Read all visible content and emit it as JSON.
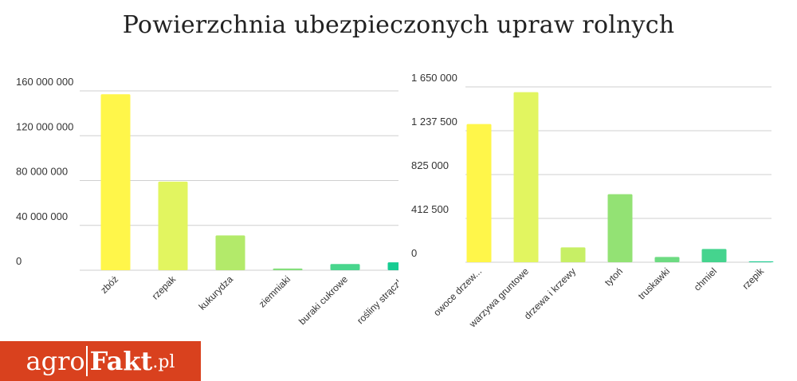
{
  "title": "Powierzchnia ubezpieczonych upraw rolnych",
  "logo": {
    "part1": "agro",
    "part2": "Fakt",
    "part3": ".pl"
  },
  "chart_data": [
    {
      "type": "bar",
      "categories": [
        "zbóż",
        "rzepak",
        "kukurydza",
        "ziemniaki",
        "buraki cukrowe",
        "rośliny strączk."
      ],
      "values": [
        157000000,
        79000000,
        31000000,
        1500000,
        5500000,
        7000000
      ],
      "colors": [
        "#fff64a",
        "#e2f560",
        "#b3ea6a",
        "#85df7c",
        "#49d68d",
        "#17cc92"
      ],
      "yticks": [
        "0",
        "40 000 000",
        "80 000 000",
        "120 000 000",
        "160 000 000"
      ],
      "ylim": [
        0,
        160000000
      ],
      "grid": true
    },
    {
      "type": "bar",
      "categories": [
        "owoce drzew...",
        "warzywa gruntowe",
        "drzewa i krzewy",
        "tytoń",
        "truskawki",
        "chmiel",
        "rzepik"
      ],
      "values": [
        1300000,
        1600000,
        140000,
        640000,
        50000,
        125000,
        8000
      ],
      "colors": [
        "#fff64a",
        "#e2f560",
        "#c7ef65",
        "#93e274",
        "#6ddb82",
        "#45d48e",
        "#1fce93"
      ],
      "yticks": [
        "0",
        "412 500",
        "825 000",
        "1 237 500",
        "1 650 000"
      ],
      "ylim": [
        0,
        1650000
      ],
      "grid": true
    }
  ]
}
